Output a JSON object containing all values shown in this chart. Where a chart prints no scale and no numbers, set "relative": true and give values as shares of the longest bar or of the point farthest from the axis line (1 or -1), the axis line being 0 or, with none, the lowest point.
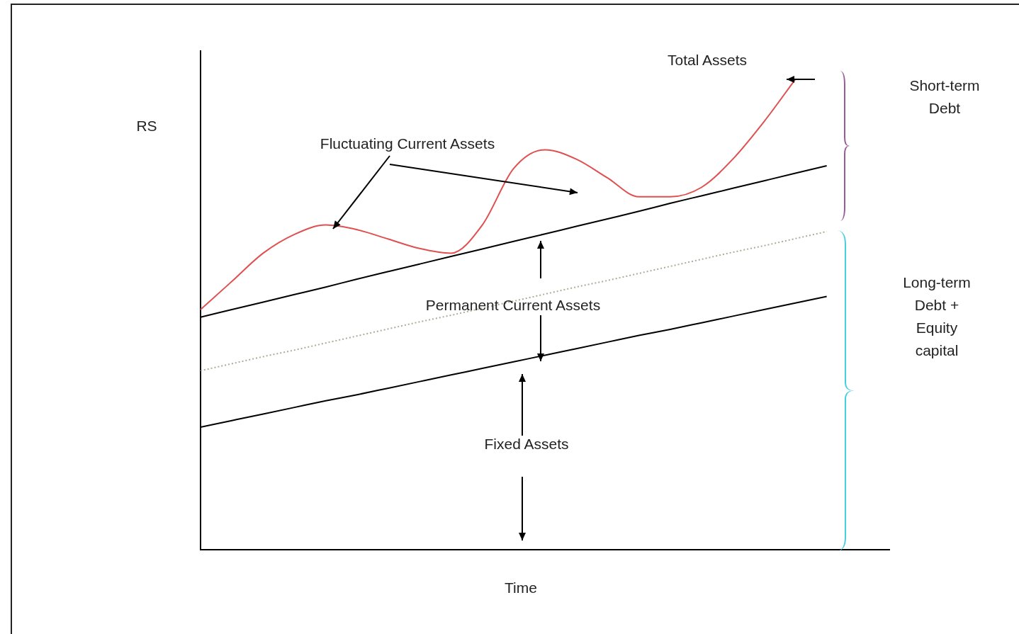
{
  "chart_data": {
    "type": "line",
    "relative": true,
    "xlabel": "Time",
    "ylabel": "RS",
    "marker": "none",
    "grid": false,
    "categories": [
      null,
      null,
      null,
      null,
      null,
      null,
      null,
      null,
      null,
      null,
      null,
      null,
      null,
      null,
      null,
      null,
      null,
      null,
      null,
      null,
      null,
      null,
      null
    ],
    "series": [
      {
        "color": "#e05050",
        "values": [
          0.51,
          0.57,
          0.63,
          0.67,
          0.69,
          0.68,
          0.66,
          0.64,
          0.63,
          0.69,
          0.81,
          0.85,
          0.83,
          0.79,
          0.75,
          0.75,
          0.77,
          0.83,
          0.91,
          1.0,
          null,
          null,
          null
        ]
      },
      {
        "color": "#000000",
        "values": [
          0.494,
          0.51,
          0.526,
          0.542,
          0.558,
          0.575,
          0.591,
          0.607,
          0.623,
          0.639,
          0.655,
          0.671,
          0.687,
          0.703,
          0.719,
          0.736,
          0.752,
          0.768,
          0.784,
          0.8,
          0.816,
          null,
          null
        ]
      },
      {
        "color": "#a8ae98",
        "line_style": "dotted",
        "values": [
          0.38,
          0.395,
          0.41,
          0.424,
          0.439,
          0.454,
          0.469,
          0.484,
          0.498,
          0.513,
          0.528,
          0.543,
          0.558,
          0.572,
          0.587,
          0.602,
          0.617,
          0.632,
          0.646,
          0.661,
          0.676,
          null,
          null
        ]
      },
      {
        "color": "#000000",
        "values": [
          0.26,
          0.274,
          0.288,
          0.302,
          0.316,
          0.329,
          0.343,
          0.357,
          0.371,
          0.385,
          0.399,
          0.413,
          0.427,
          0.441,
          0.455,
          0.468,
          0.482,
          0.496,
          0.51,
          0.524,
          0.538,
          null,
          null
        ]
      }
    ],
    "annotations": [
      "Total Assets",
      "Fluctuating Current Assets",
      "Permanent Current Assets",
      "Fixed Assets",
      "Short-term Debt",
      "Long-term Debt + Equity capital"
    ]
  }
}
